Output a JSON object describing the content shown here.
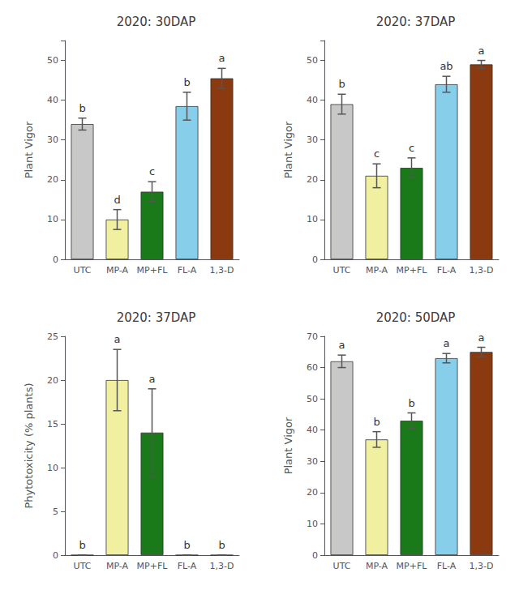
{
  "chart_data": [
    {
      "type": "bar",
      "title": "2020: 30DAP",
      "ylabel": "Plant Vigor",
      "categories": [
        "UTC",
        "MP-A",
        "MP+FL",
        "FL-A",
        "1,3-D"
      ],
      "values": [
        34.0,
        10.0,
        17.0,
        38.5,
        45.5
      ],
      "errors": [
        1.5,
        2.5,
        2.5,
        3.5,
        2.5
      ],
      "annotations": [
        "b",
        "d",
        "c",
        "b",
        "a"
      ],
      "colors": [
        "#c8c8c8",
        "#f0f0a0",
        "#1a7a1a",
        "#87ceeb",
        "#8b3a0f"
      ],
      "ylim": [
        0,
        55
      ],
      "yticks": [
        0,
        10,
        20,
        30,
        40,
        50
      ]
    },
    {
      "type": "bar",
      "title": "2020: 37DAP",
      "ylabel": "Plant Vigor",
      "categories": [
        "UTC",
        "MP-A",
        "MP+FL",
        "FL-A",
        "1,3-D"
      ],
      "values": [
        39.0,
        21.0,
        23.0,
        44.0,
        49.0
      ],
      "errors": [
        2.5,
        3.0,
        2.5,
        2.0,
        1.0
      ],
      "annotations": [
        "b",
        "c",
        "c",
        "ab",
        "a"
      ],
      "colors": [
        "#c8c8c8",
        "#f0f0a0",
        "#1a7a1a",
        "#87ceeb",
        "#8b3a0f"
      ],
      "ylim": [
        0,
        55
      ],
      "yticks": [
        0,
        10,
        20,
        30,
        40,
        50
      ]
    },
    {
      "type": "bar",
      "title": "2020: 37DAP",
      "ylabel": "Phytotoxicity (% plants)",
      "categories": [
        "UTC",
        "MP-A",
        "MP+FL",
        "FL-A",
        "1,3-D"
      ],
      "values": [
        0.0,
        20.0,
        14.0,
        0.0,
        0.0
      ],
      "errors": [
        0.0,
        3.5,
        5.0,
        0.0,
        0.0
      ],
      "annotations": [
        "b",
        "a",
        "a",
        "b",
        "b"
      ],
      "colors": [
        "#c8c8c8",
        "#f0f0a0",
        "#1a7a1a",
        "#87ceeb",
        "#8b3a0f"
      ],
      "ylim": [
        0,
        25
      ],
      "yticks": [
        0,
        5,
        10,
        15,
        20,
        25
      ]
    },
    {
      "type": "bar",
      "title": "2020: 50DAP",
      "ylabel": "Plant Vigor",
      "categories": [
        "UTC",
        "MP-A",
        "MP+FL",
        "FL-A",
        "1,3-D"
      ],
      "values": [
        62.0,
        37.0,
        43.0,
        63.0,
        65.0
      ],
      "errors": [
        2.0,
        2.5,
        2.5,
        1.5,
        1.5
      ],
      "annotations": [
        "a",
        "b",
        "b",
        "a",
        "a"
      ],
      "colors": [
        "#c8c8c8",
        "#f0f0a0",
        "#1a7a1a",
        "#87ceeb",
        "#8b3a0f"
      ],
      "ylim": [
        0,
        70
      ],
      "yticks": [
        0,
        10,
        20,
        30,
        40,
        50,
        60,
        70
      ]
    }
  ]
}
